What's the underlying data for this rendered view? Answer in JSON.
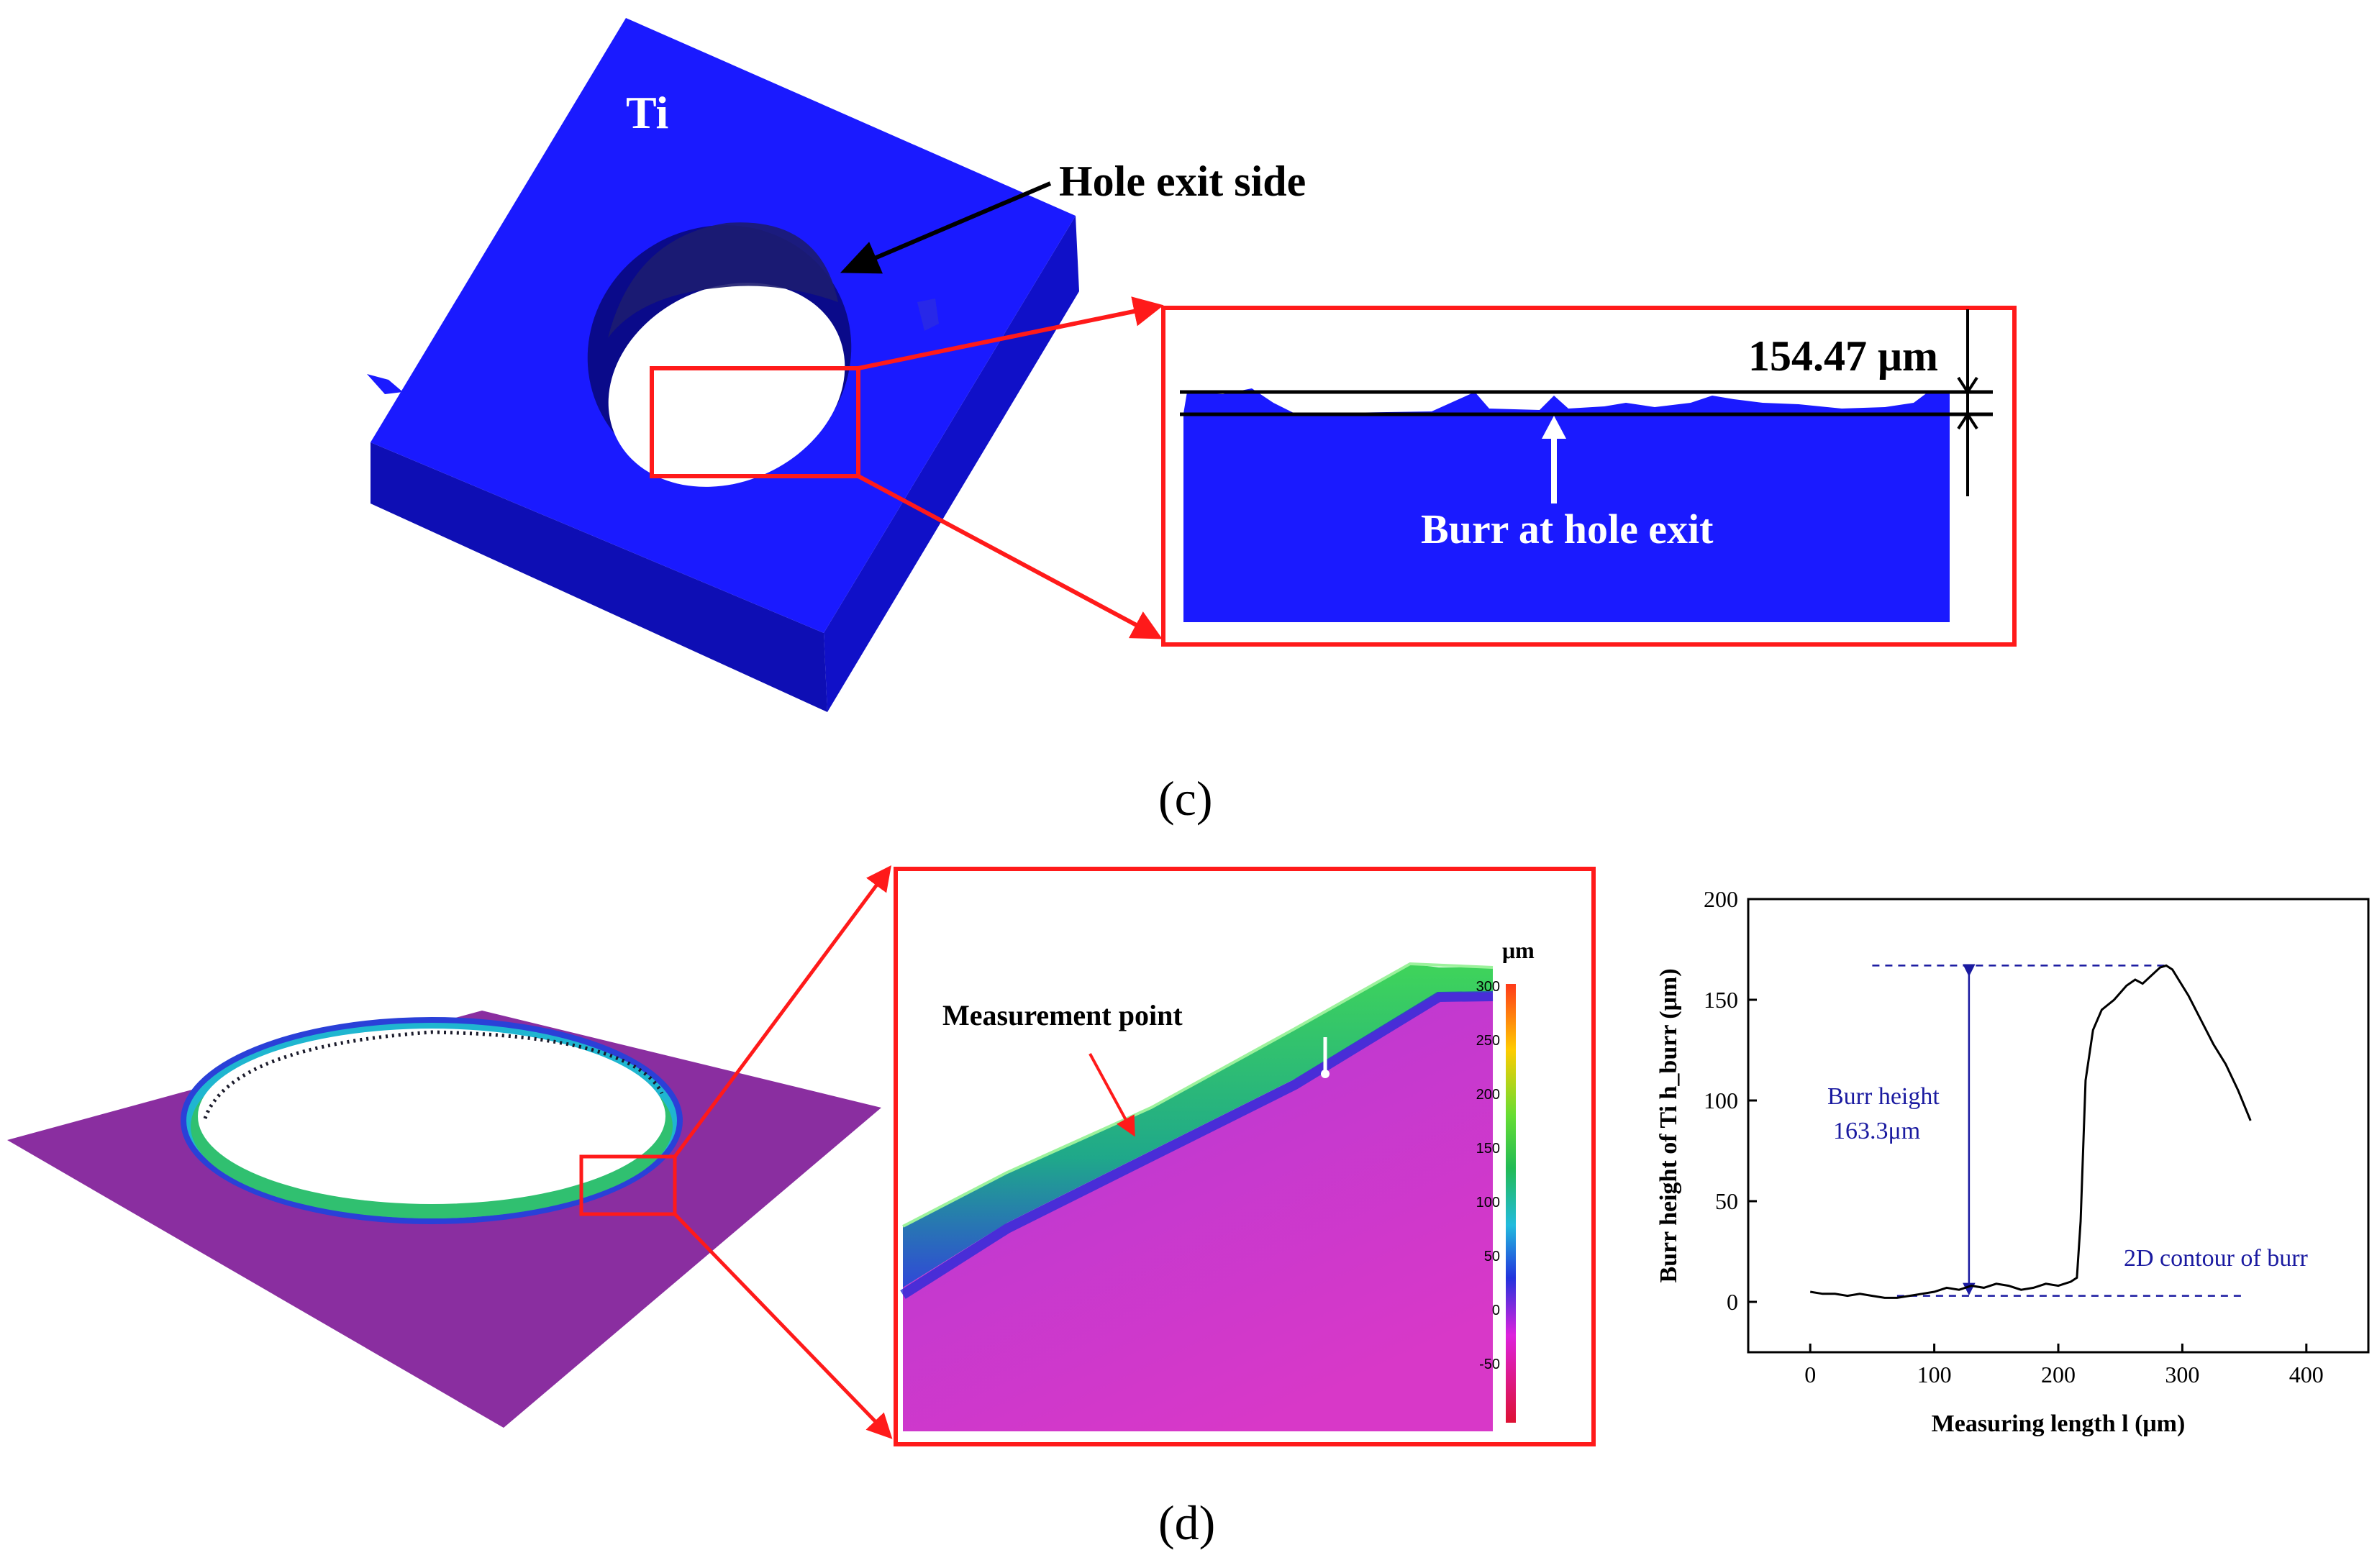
{
  "panel_c": {
    "caption": "(c)",
    "material_label": "Ti",
    "hole_exit_label": "Hole exit side",
    "dimension_label": "154.47 μm",
    "burr_label": "Burr at hole exit",
    "colors": {
      "sample": "#1a1aff",
      "sample_side": "#1010c8",
      "sample_front": "#0e0eb4",
      "callout": "#ff1a1a"
    }
  },
  "panel_d": {
    "caption": "(d)",
    "measurement_label": "Measurement point",
    "colorbar": {
      "unit": "μm",
      "ticks": [
        "300",
        "250",
        "200",
        "150",
        "100",
        "50",
        "0",
        "-50"
      ]
    },
    "colors": {
      "surface": "#8a2ea0",
      "callout": "#ff1a1a",
      "annotation": "#1a1aa0"
    }
  },
  "chart_data": {
    "type": "line",
    "title": "",
    "xlabel": "Measuring length l (μm)",
    "ylabel": "Burr height of Ti h_burr (μm)",
    "xlim": [
      -50,
      450
    ],
    "ylim": [
      -25,
      200
    ],
    "xticks": [
      "0",
      "100",
      "200",
      "300",
      "400"
    ],
    "yticks": [
      "0",
      "50",
      "100",
      "150",
      "200"
    ],
    "grid": false,
    "series": [
      {
        "x": [
          0,
          10,
          20,
          30,
          40,
          50,
          60,
          70,
          80,
          90,
          100,
          110,
          120,
          130,
          140,
          150,
          160,
          170,
          180,
          190,
          200,
          210,
          215,
          218,
          222,
          228,
          235,
          245,
          255,
          262,
          268,
          275,
          282,
          287,
          292,
          297,
          305,
          315,
          325,
          335,
          345,
          355
        ],
        "y": [
          5,
          4,
          4,
          3,
          4,
          3,
          2,
          2,
          3,
          4,
          5,
          7,
          6,
          8,
          7,
          9,
          8,
          6,
          7,
          9,
          8,
          10,
          12,
          40,
          110,
          135,
          145,
          150,
          157,
          160,
          158,
          162,
          166,
          167,
          165,
          160,
          152,
          140,
          128,
          118,
          105,
          90
        ]
      }
    ],
    "annotations": {
      "burr_height_label": "Burr height",
      "burr_height_value": "163.3μm",
      "contour_label": "2D contour of burr",
      "reference_levels": [
        167,
        3
      ]
    }
  }
}
